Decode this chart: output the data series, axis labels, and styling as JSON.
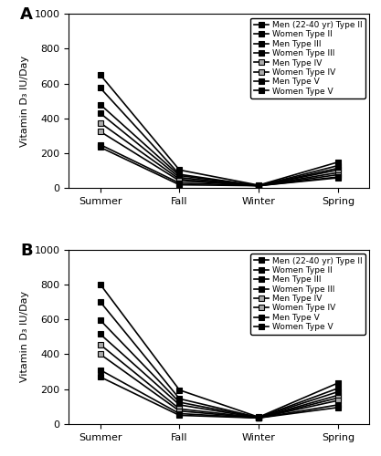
{
  "seasons": [
    "Summer",
    "Fall",
    "Winter",
    "Spring"
  ],
  "panel_A": {
    "title": "A",
    "series": [
      {
        "label": "Men (22-40 yr) Type II",
        "values": [
          650,
          105,
          18,
          150
        ],
        "marker": "s",
        "markersize": 4,
        "color": "#000000",
        "mfc": "#000000",
        "lw": 1.2
      },
      {
        "label": "Women Type II",
        "values": [
          575,
          80,
          15,
          130
        ],
        "marker": "s",
        "markersize": 4,
        "color": "#000000",
        "mfc": "#000000",
        "lw": 1.2
      },
      {
        "label": "Men Type III",
        "values": [
          480,
          73,
          15,
          115
        ],
        "marker": "s",
        "markersize": 4,
        "color": "#000000",
        "mfc": "#000000",
        "lw": 1.2
      },
      {
        "label": "Women Type III",
        "values": [
          430,
          62,
          15,
          105
        ],
        "marker": "s",
        "markersize": 4,
        "color": "#000000",
        "mfc": "#000000",
        "lw": 1.2
      },
      {
        "label": "Men Type IV",
        "values": [
          375,
          52,
          15,
          90
        ],
        "marker": "s",
        "markersize": 4,
        "color": "#000000",
        "mfc": "#aaaaaa",
        "lw": 1.2
      },
      {
        "label": "Women Type IV",
        "values": [
          325,
          43,
          15,
          78
        ],
        "marker": "s",
        "markersize": 4,
        "color": "#000000",
        "mfc": "#aaaaaa",
        "lw": 1.2
      },
      {
        "label": "Men Type V",
        "values": [
          250,
          30,
          15,
          65
        ],
        "marker": "s",
        "markersize": 4,
        "color": "#000000",
        "mfc": "#000000",
        "lw": 1.2
      },
      {
        "label": "Women Type V",
        "values": [
          235,
          20,
          15,
          60
        ],
        "marker": "s",
        "markersize": 4,
        "color": "#000000",
        "mfc": "#000000",
        "lw": 1.2
      }
    ]
  },
  "panel_B": {
    "title": "B",
    "series": [
      {
        "label": "Men (22-40 yr) Type II",
        "values": [
          800,
          195,
          40,
          235
        ],
        "marker": "s",
        "markersize": 4,
        "color": "#000000",
        "mfc": "#000000",
        "lw": 1.2
      },
      {
        "label": "Women Type II",
        "values": [
          700,
          145,
          38,
          205
        ],
        "marker": "s",
        "markersize": 4,
        "color": "#000000",
        "mfc": "#000000",
        "lw": 1.2
      },
      {
        "label": "Men Type III",
        "values": [
          595,
          125,
          38,
          185
        ],
        "marker": "s",
        "markersize": 4,
        "color": "#000000",
        "mfc": "#000000",
        "lw": 1.2
      },
      {
        "label": "Women Type III",
        "values": [
          515,
          110,
          36,
          165
        ],
        "marker": "s",
        "markersize": 4,
        "color": "#000000",
        "mfc": "#000000",
        "lw": 1.2
      },
      {
        "label": "Men Type IV",
        "values": [
          455,
          87,
          36,
          150
        ],
        "marker": "s",
        "markersize": 4,
        "color": "#000000",
        "mfc": "#aaaaaa",
        "lw": 1.2
      },
      {
        "label": "Women Type IV",
        "values": [
          400,
          75,
          35,
          135
        ],
        "marker": "s",
        "markersize": 4,
        "color": "#000000",
        "mfc": "#aaaaaa",
        "lw": 1.2
      },
      {
        "label": "Men Type V",
        "values": [
          310,
          60,
          35,
          110
        ],
        "marker": "s",
        "markersize": 4,
        "color": "#000000",
        "mfc": "#000000",
        "lw": 1.2
      },
      {
        "label": "Women Type V",
        "values": [
          270,
          50,
          35,
          95
        ],
        "marker": "s",
        "markersize": 4,
        "color": "#000000",
        "mfc": "#000000",
        "lw": 1.2
      }
    ]
  },
  "ylabel": "Vitamin D₃ IU/Day",
  "ylim": [
    0,
    1000
  ],
  "yticks": [
    0,
    200,
    400,
    600,
    800,
    1000
  ],
  "background_color": "#ffffff",
  "legend_fontsize": 6.5,
  "axis_fontsize": 8,
  "tick_fontsize": 8
}
